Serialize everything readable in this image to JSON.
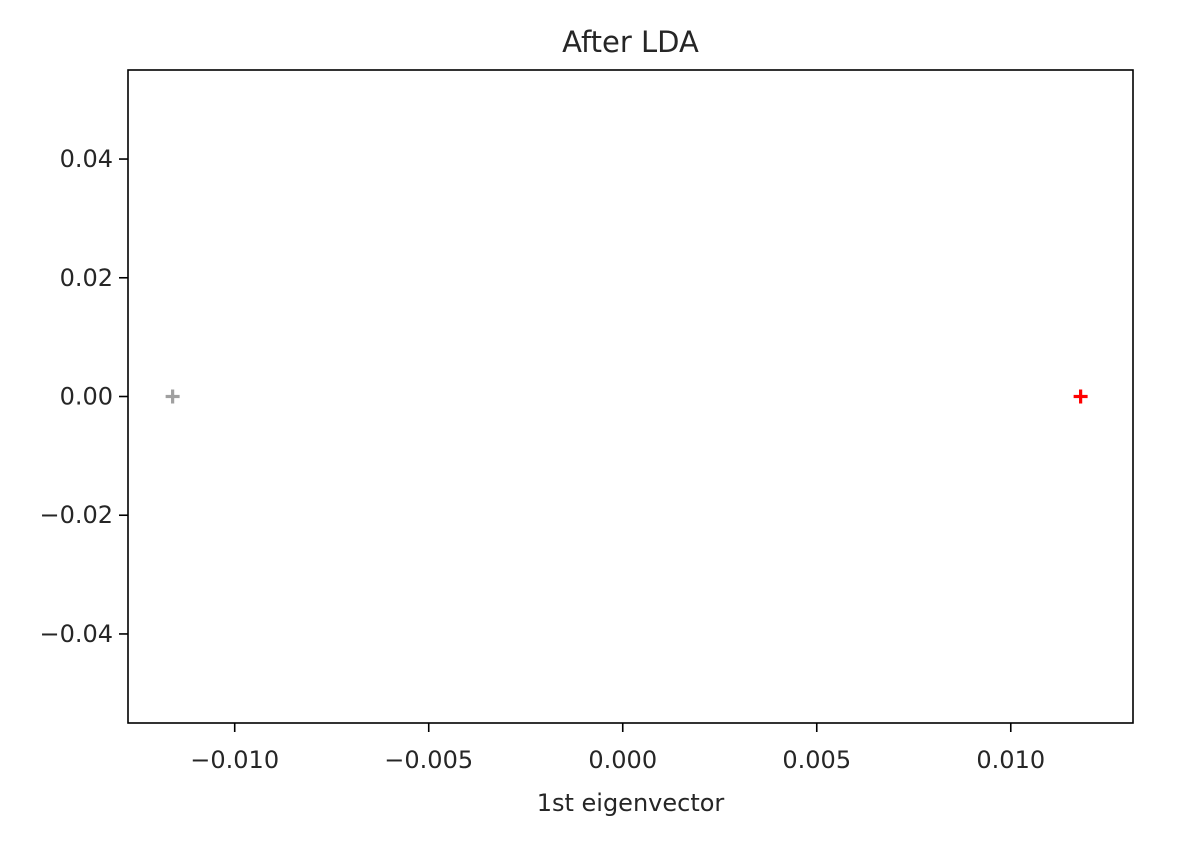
{
  "chart_data": {
    "type": "scatter",
    "title": "After LDA",
    "xlabel": "1st eigenvector",
    "ylabel": "",
    "xlim": [
      -0.01275,
      0.01315
    ],
    "ylim": [
      -0.055,
      0.055
    ],
    "grid": false,
    "x_ticks": [
      -0.01,
      -0.005,
      0.0,
      0.005,
      0.01
    ],
    "x_tick_labels": [
      "−0.010",
      "−0.005",
      "0.000",
      "0.005",
      "0.010"
    ],
    "y_ticks": [
      0.04,
      0.02,
      0.0,
      -0.02,
      -0.04
    ],
    "y_tick_labels": [
      "0.04",
      "0.02",
      "0.00",
      "−0.02",
      "−0.04"
    ],
    "series": [
      {
        "color": "#a0a0a0",
        "marker": "+",
        "points": [
          [
            -0.0116,
            0.0
          ]
        ]
      },
      {
        "color": "#ff0000",
        "marker": "+",
        "points": [
          [
            0.0118,
            0.0
          ]
        ]
      }
    ]
  }
}
